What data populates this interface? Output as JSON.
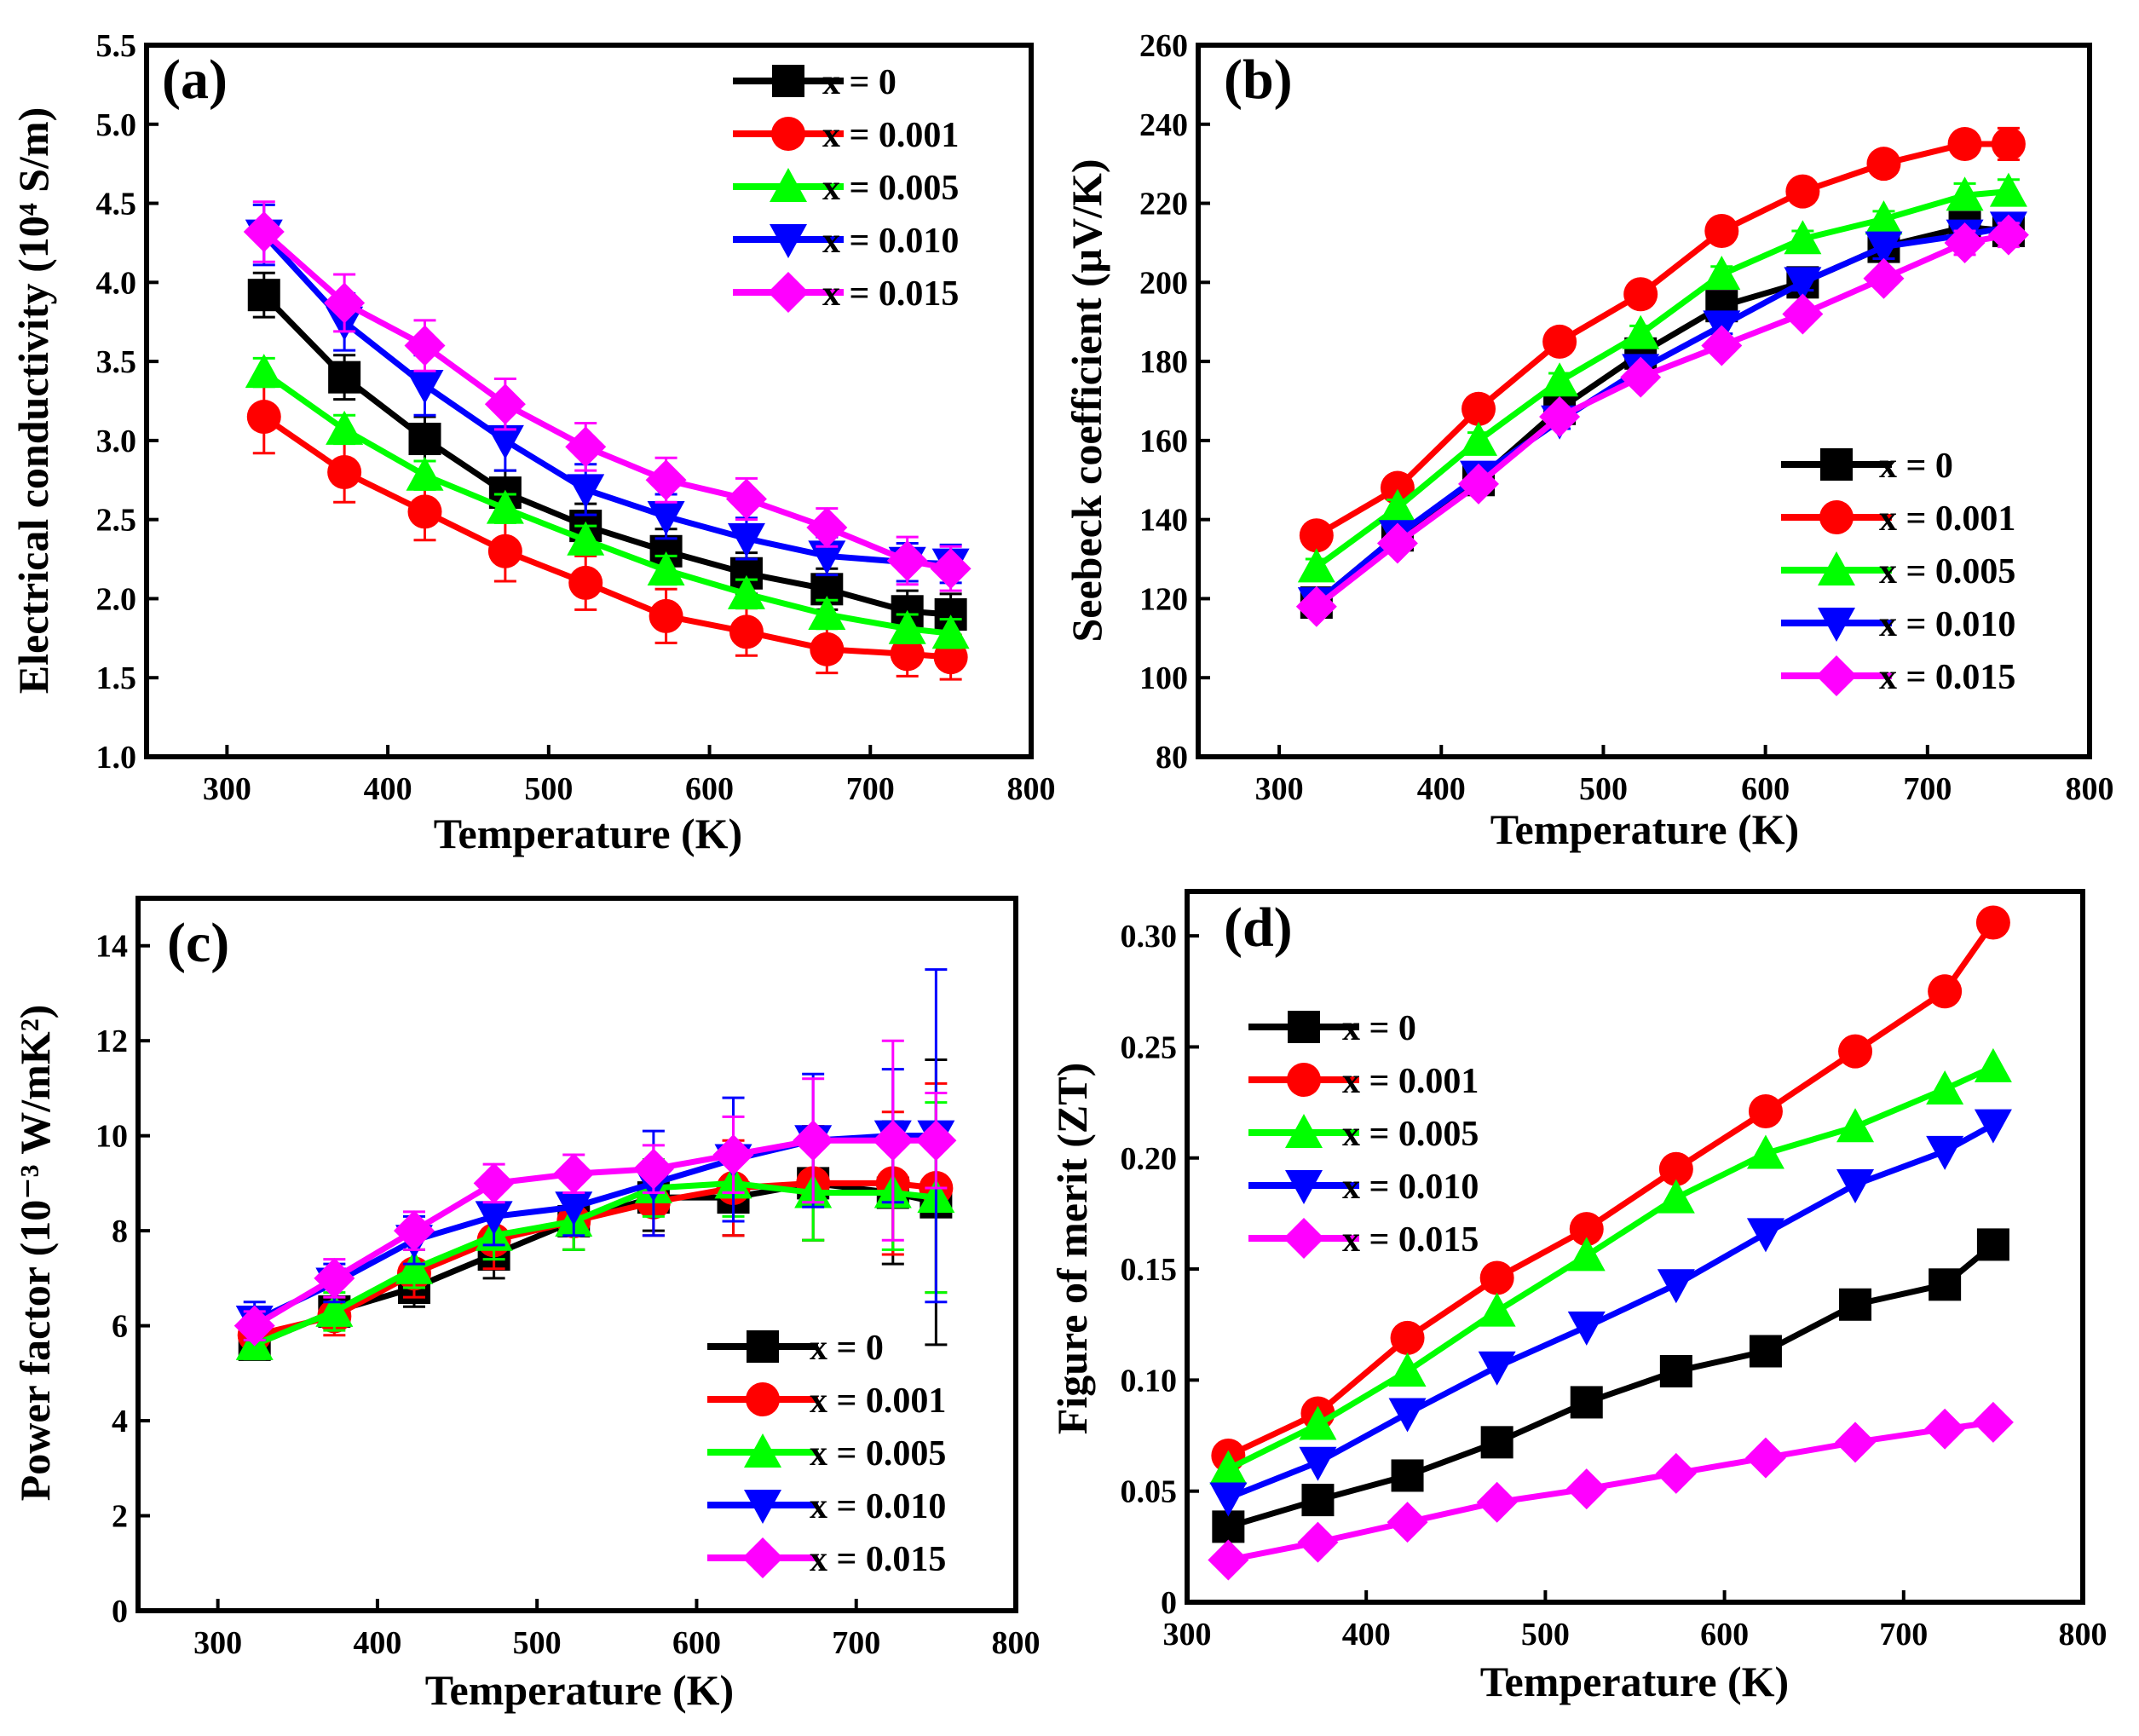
{
  "figure": {
    "background": "#ffffff"
  },
  "series_style": [
    {
      "label": "x = 0",
      "color": "#000000",
      "marker": "square"
    },
    {
      "label": "x = 0.001",
      "color": "#ff0000",
      "marker": "circle"
    },
    {
      "label": "x = 0.005",
      "color": "#00ff00",
      "marker": "triangle-up"
    },
    {
      "label": "x = 0.010",
      "color": "#0000ff",
      "marker": "triangle-down"
    },
    {
      "label": "x = 0.015",
      "color": "#ff00ff",
      "marker": "diamond"
    }
  ],
  "chart_data": [
    {
      "id": "a",
      "panel_label": "(a)",
      "type": "line",
      "xlabel": "Temperature (K)",
      "ylabel": "Electrical conductivity (10⁴ S/m)",
      "xlim": [
        250,
        800
      ],
      "ylim": [
        1.0,
        5.5
      ],
      "xticks": [
        300,
        400,
        500,
        600,
        700,
        800
      ],
      "yticks": [
        1.0,
        1.5,
        2.0,
        2.5,
        3.0,
        3.5,
        4.0,
        4.5,
        5.0,
        5.5
      ],
      "ytick_labels": [
        "1.0",
        "1.5",
        "2.0",
        "2.5",
        "3.0",
        "3.5",
        "4.0",
        "4.5",
        "5.0",
        "5.5"
      ],
      "xtick_labels": [
        "300",
        "400",
        "500",
        "600",
        "700",
        "800"
      ],
      "legend_position": "top-right",
      "x": [
        323,
        373,
        423,
        473,
        523,
        573,
        623,
        673,
        723,
        750
      ],
      "series": [
        {
          "name": "x = 0",
          "values": [
            3.92,
            3.4,
            3.01,
            2.67,
            2.46,
            2.3,
            2.16,
            2.06,
            1.92,
            1.9
          ],
          "errors": [
            0.14,
            0.14,
            0.14,
            0.14,
            0.14,
            0.14,
            0.13,
            0.13,
            0.13,
            0.13
          ]
        },
        {
          "name": "x = 0.001",
          "values": [
            3.15,
            2.8,
            2.55,
            2.3,
            2.1,
            1.89,
            1.79,
            1.68,
            1.65,
            1.63
          ],
          "errors": [
            0.23,
            0.19,
            0.18,
            0.19,
            0.17,
            0.17,
            0.15,
            0.15,
            0.14,
            0.14
          ]
        },
        {
          "name": "x = 0.005",
          "values": [
            3.43,
            3.07,
            2.78,
            2.57,
            2.37,
            2.18,
            2.03,
            1.9,
            1.81,
            1.78
          ],
          "errors": [
            0.09,
            0.09,
            0.09,
            0.09,
            0.09,
            0.09,
            0.09,
            0.09,
            0.09,
            0.09
          ]
        },
        {
          "name": "x = 0.010",
          "values": [
            4.3,
            3.75,
            3.35,
            3.0,
            2.69,
            2.52,
            2.38,
            2.27,
            2.23,
            2.22
          ],
          "errors": [
            0.19,
            0.18,
            0.19,
            0.19,
            0.16,
            0.14,
            0.13,
            0.12,
            0.12,
            0.12
          ]
        },
        {
          "name": "x = 0.015",
          "values": [
            4.32,
            3.87,
            3.6,
            3.23,
            2.96,
            2.75,
            2.63,
            2.45,
            2.24,
            2.19
          ],
          "errors": [
            0.19,
            0.18,
            0.16,
            0.16,
            0.15,
            0.14,
            0.13,
            0.12,
            0.15,
            0.14
          ]
        }
      ]
    },
    {
      "id": "b",
      "panel_label": "(b)",
      "type": "line",
      "xlabel": "Temperature (K)",
      "ylabel": "Seebeck coefficient (μV/K)",
      "xlim": [
        250,
        800
      ],
      "ylim": [
        80,
        260
      ],
      "xticks": [
        300,
        400,
        500,
        600,
        700,
        800
      ],
      "yticks": [
        80,
        100,
        120,
        140,
        160,
        180,
        200,
        220,
        240,
        260
      ],
      "ytick_labels": [
        "80",
        "100",
        "120",
        "140",
        "160",
        "180",
        "200",
        "220",
        "240",
        "260"
      ],
      "xtick_labels": [
        "300",
        "400",
        "500",
        "600",
        "700",
        "800"
      ],
      "legend_position": "bottom-right",
      "x": [
        323,
        373,
        423,
        473,
        523,
        573,
        623,
        673,
        723,
        750
      ],
      "series": [
        {
          "name": "x = 0",
          "values": [
            119,
            136,
            150,
            168,
            182,
            194,
            200,
            209,
            214,
            213
          ],
          "errors": [
            2,
            2,
            2,
            2,
            2,
            2,
            2,
            3,
            3,
            3
          ]
        },
        {
          "name": "x = 0.001",
          "values": [
            136,
            148,
            168,
            185,
            197,
            213,
            223,
            230,
            235,
            235
          ],
          "errors": [
            2,
            2,
            2,
            2,
            2,
            2,
            2,
            2,
            3,
            4
          ]
        },
        {
          "name": "x = 0.005",
          "values": [
            128,
            143,
            160,
            175,
            187,
            202,
            211,
            216,
            222,
            223
          ],
          "errors": [
            2,
            2,
            2,
            2,
            2,
            2,
            2,
            2,
            3,
            3
          ]
        },
        {
          "name": "x = 0.010",
          "values": [
            119,
            136,
            151,
            165,
            178,
            189,
            200,
            209,
            212,
            214
          ],
          "errors": [
            2,
            2,
            2,
            2,
            2,
            2,
            2,
            3,
            3,
            3
          ]
        },
        {
          "name": "x = 0.015",
          "values": [
            118,
            134,
            149,
            166,
            176,
            184,
            192,
            201,
            210,
            212
          ],
          "errors": [
            2,
            2,
            2,
            2,
            2,
            2,
            2,
            2,
            3,
            3
          ]
        }
      ]
    },
    {
      "id": "c",
      "panel_label": "(c)",
      "type": "line",
      "xlabel": "Temperature (K)",
      "ylabel": "Power factor (10⁻³ W/mK²)",
      "xlim": [
        250,
        800
      ],
      "ylim": [
        0,
        15
      ],
      "xticks": [
        300,
        400,
        500,
        600,
        700,
        800
      ],
      "yticks": [
        0,
        2,
        4,
        6,
        8,
        10,
        12,
        14
      ],
      "ytick_labels": [
        "0",
        "2",
        "4",
        "6",
        "8",
        "10",
        "12",
        "14"
      ],
      "xtick_labels": [
        "300",
        "400",
        "500",
        "600",
        "700",
        "800"
      ],
      "legend_position": "bottom-right",
      "x": [
        323,
        373,
        423,
        473,
        523,
        573,
        623,
        673,
        723,
        750
      ],
      "series": [
        {
          "name": "x = 0",
          "values": [
            5.6,
            6.3,
            6.8,
            7.5,
            8.2,
            8.7,
            8.7,
            9.0,
            8.8,
            8.6
          ],
          "errors": [
            0.3,
            0.3,
            0.4,
            0.5,
            0.6,
            0.7,
            0.8,
            1.2,
            1.5,
            3.0
          ]
        },
        {
          "name": "x = 0.001",
          "values": [
            5.8,
            6.2,
            7.1,
            7.8,
            8.2,
            8.6,
            8.9,
            9.0,
            9.0,
            8.9
          ],
          "errors": [
            0.3,
            0.4,
            0.5,
            0.6,
            0.6,
            0.7,
            1.0,
            1.2,
            1.5,
            2.2
          ]
        },
        {
          "name": "x = 0.005",
          "values": [
            5.6,
            6.3,
            7.2,
            7.9,
            8.2,
            8.9,
            9.0,
            8.8,
            8.8,
            8.7
          ],
          "errors": [
            0.3,
            0.4,
            0.4,
            0.5,
            0.6,
            0.6,
            0.7,
            1.0,
            1.2,
            2.0
          ]
        },
        {
          "name": "x = 0.010",
          "values": [
            6.1,
            6.9,
            7.8,
            8.3,
            8.5,
            9.0,
            9.5,
            9.9,
            10.0,
            10.0
          ],
          "errors": [
            0.4,
            0.4,
            0.5,
            0.6,
            0.6,
            1.1,
            1.3,
            1.4,
            1.4,
            3.5
          ]
        },
        {
          "name": "x = 0.015",
          "values": [
            6.0,
            7.0,
            8.0,
            9.0,
            9.2,
            9.3,
            9.6,
            9.9,
            9.9,
            9.9
          ],
          "errors": [
            0.3,
            0.4,
            0.4,
            0.4,
            0.4,
            0.5,
            0.8,
            1.3,
            2.1,
            1.0
          ]
        }
      ]
    },
    {
      "id": "d",
      "panel_label": "(d)",
      "type": "line",
      "xlabel": "Temperature (K)",
      "ylabel": "Figure of merit (ZT)",
      "xlim": [
        300,
        800
      ],
      "ylim": [
        0,
        0.32
      ],
      "xticks": [
        300,
        400,
        500,
        600,
        700,
        800
      ],
      "yticks": [
        0,
        0.05,
        0.1,
        0.15,
        0.2,
        0.25,
        0.3
      ],
      "ytick_labels": [
        "0",
        "0.05",
        "0.10",
        "0.15",
        "0.20",
        "0.25",
        "0.30"
      ],
      "xtick_labels": [
        "300",
        "400",
        "500",
        "600",
        "700",
        "800"
      ],
      "legend_position": "top-left",
      "x": [
        323,
        373,
        423,
        473,
        523,
        573,
        623,
        673,
        723,
        750
      ],
      "series": [
        {
          "name": "x = 0",
          "values": [
            0.034,
            0.046,
            0.057,
            0.072,
            0.09,
            0.104,
            0.113,
            0.134,
            0.143,
            0.161
          ]
        },
        {
          "name": "x = 0.001",
          "values": [
            0.066,
            0.085,
            0.119,
            0.146,
            0.168,
            0.195,
            0.221,
            0.248,
            0.275,
            0.306
          ]
        },
        {
          "name": "x = 0.005",
          "values": [
            0.06,
            0.08,
            0.104,
            0.131,
            0.156,
            0.182,
            0.202,
            0.214,
            0.231,
            0.241
          ]
        },
        {
          "name": "x = 0.010",
          "values": [
            0.047,
            0.063,
            0.085,
            0.106,
            0.124,
            0.143,
            0.166,
            0.188,
            0.203,
            0.215
          ]
        },
        {
          "name": "x = 0.015",
          "values": [
            0.019,
            0.027,
            0.036,
            0.045,
            0.051,
            0.058,
            0.065,
            0.072,
            0.078,
            0.081
          ]
        }
      ]
    }
  ]
}
